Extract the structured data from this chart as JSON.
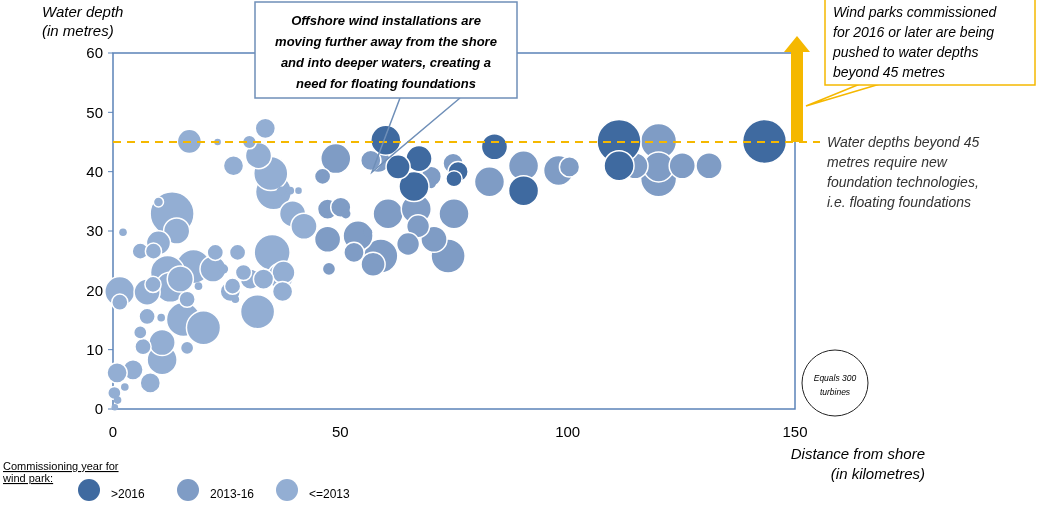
{
  "chart_data": {
    "type": "bubble",
    "xlabel": "Distance from shore\n(in kilometres)",
    "ylabel": "Water depth\n(in metres)",
    "legend_title": "Commissioning year for\nwind park:",
    "legend": "bottom left",
    "xlim": [
      0,
      150
    ],
    "xticks": [
      0,
      50,
      100,
      150
    ],
    "ylim": [
      0,
      60
    ],
    "yticks": [
      0,
      10,
      20,
      30,
      40,
      50,
      60
    ],
    "size_legend": [
      {
        "value": 300,
        "label": "Equals 300\nturbines"
      }
    ],
    "ref_lines": [
      {
        "axis": "y",
        "value": 45,
        "label": "Water depths beyond 45\nmetres require new\nfoundation technologies,\ni.e. floating foundations",
        "color": "#f5b800",
        "line_style": "dashed"
      }
    ],
    "annotations": [
      "Offshore wind installations are\nmoving further away from the shore\nand into deeper waters, creating a\nneed for floating foundations",
      "Wind parks commissioned\nfor 2016 or later are being\npushed to water depths\nbeyond 45 metres"
    ],
    "series": [
      {
        "name": ">2016",
        "color": "#3f6aa0",
        "x": [
          60,
          67.3,
          62.7,
          66.2,
          75.9,
          75,
          83.9,
          90.3,
          111.3,
          111.3,
          143.3
        ],
        "values": [
          45.3,
          42.2,
          40.8,
          37.5,
          40,
          38.8,
          44.2,
          36.8,
          45.1,
          41,
          45.1
        ],
        "sizes": [
          62,
          47,
          40,
          62,
          28,
          18,
          47,
          62,
          133,
          62,
          133
        ]
      },
      {
        "name": "2013-16",
        "color": "#7f9cc5",
        "x": [
          47.2,
          50.1,
          51.2,
          47.2,
          49,
          46.1,
          47.5,
          53.9,
          53,
          56,
          58.3,
          56.7,
          70,
          70,
          74.8,
          60.5,
          66.7,
          67.1,
          75,
          70.6,
          64.9,
          73.7,
          57.2,
          58.9,
          82.8,
          90.3,
          98,
          100.4,
          120,
          120,
          125.2,
          131.1,
          120,
          114.8
        ],
        "values": [
          33.7,
          34,
          32.9,
          28.6,
          42.2,
          39.2,
          23.6,
          29.2,
          26.4,
          29.8,
          41.9,
          41.9,
          39.2,
          38,
          41.4,
          32.9,
          33.7,
          30.8,
          32.9,
          28.6,
          27.8,
          25.8,
          24.4,
          25.8,
          38.3,
          41,
          40.2,
          40.8,
          45.1,
          40.8,
          41,
          41,
          38.8,
          41
        ],
        "sizes": [
          28,
          28,
          6,
          47,
          62,
          18,
          12,
          62,
          28,
          6,
          40,
          28,
          28,
          6,
          28,
          62,
          62,
          36,
          62,
          47,
          36,
          80,
          40,
          80,
          62,
          62,
          62,
          28,
          89,
          62,
          47,
          47,
          89,
          47
        ]
      },
      {
        "name": "<=2013",
        "color": "#93aed3",
        "x": [
          16.8,
          33.5,
          30,
          26.5,
          32,
          35.3,
          37,
          39.5,
          13,
          10,
          14,
          2.2,
          10,
          6,
          8.9,
          17.7,
          12,
          1.5,
          1.5,
          7.5,
          12.6,
          8.8,
          15.5,
          14.8,
          16.3,
          7.5,
          10.6,
          22,
          22.5,
          24.3,
          27.4,
          28.7,
          26.3,
          35,
          36.9,
          31.8,
          19.9,
          16.3,
          10.8,
          6.6,
          6,
          10.8,
          4.4,
          0.9,
          8.2,
          0.3,
          2.6,
          1,
          0.4,
          18.8,
          26.9,
          23,
          34.7,
          39,
          40.8,
          42,
          30.2,
          33.1,
          37.5,
          37.3,
          25.8
        ],
        "values": [
          45.1,
          47.3,
          45,
          41,
          42.7,
          36.6,
          36.7,
          32.9,
          32.9,
          34.9,
          30,
          29.8,
          28,
          26.6,
          26.6,
          24,
          23,
          19.8,
          18,
          19.7,
          20.5,
          21,
          15.1,
          21.9,
          18.5,
          15.6,
          15.4,
          23.6,
          26.4,
          23.6,
          26.4,
          23,
          20.7,
          26.4,
          22.4,
          16.4,
          13.7,
          10.3,
          11.2,
          10.5,
          12.9,
          8.3,
          6.6,
          6.1,
          4.4,
          2.7,
          3.7,
          1.5,
          0.3,
          20.7,
          18.5,
          45,
          39.7,
          36.8,
          36.8,
          30.8,
          21.9,
          21.9,
          23,
          19.8,
          19.8
        ],
        "sizes": [
          40,
          28,
          13,
          28,
          47,
          89,
          6,
          47,
          133,
          7,
          47,
          4,
          40,
          18,
          18,
          80,
          80,
          62,
          18,
          47,
          62,
          18,
          80,
          47,
          18,
          18,
          4,
          47,
          18,
          6,
          18,
          18,
          18,
          89,
          47,
          80,
          80,
          12,
          47,
          18,
          12,
          62,
          28,
          28,
          28,
          12,
          4,
          4,
          3,
          4,
          4,
          3,
          80,
          4,
          3,
          47,
          28,
          28,
          36,
          28,
          28
        ]
      }
    ]
  }
}
